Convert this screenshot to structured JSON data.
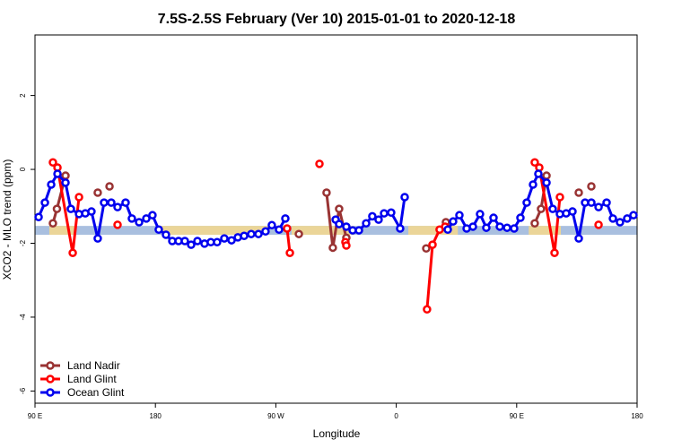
{
  "chart_data": {
    "type": "line",
    "title": "7.5S-2.5S February (Ver 10)   2015-01-01 to 2020-12-18",
    "x_label": "Longitude",
    "y_label": "XCO2 - MLO trend (ppm)",
    "xlim": [
      90,
      540
    ],
    "ylim": [
      -6.33,
      3.64
    ],
    "xticks": [
      {
        "value": 90,
        "label": "90 E"
      },
      {
        "value": 180,
        "label": "180"
      },
      {
        "value": 270,
        "label": "90 W"
      },
      {
        "value": 360,
        "label": "0"
      },
      {
        "value": 450,
        "label": "90 E"
      },
      {
        "value": 540,
        "label": "180"
      }
    ],
    "yticks": [
      -6,
      -4,
      -2,
      0,
      2
    ],
    "legend": "bottom-left",
    "band": [
      -1.53,
      -1.77
    ],
    "band_color": "#a9bfdf",
    "highlight_spans": [
      [
        100.7,
        120.8
      ],
      [
        184.6,
        265.0
      ],
      [
        281.8,
        328.7
      ],
      [
        369.0,
        406.0
      ],
      [
        459.0,
        483.0
      ]
    ],
    "highlight_color": "#f7d88c",
    "series": [
      {
        "name": "Land Nadir",
        "color": "#993333",
        "x": [
          103.4,
          106.4,
          112.8,
          null,
          136.9,
          null,
          145.7,
          null,
          287.2,
          null,
          307.9,
          312.6,
          317.3,
          322.7,
          null,
          382.4,
          null,
          397.1,
          null,
          463.5,
          468.2,
          472.3,
          null,
          496.4,
          null,
          505.8
        ],
        "values": [
          -1.46,
          -1.07,
          -0.17,
          null,
          -0.63,
          null,
          -0.46,
          null,
          -1.75,
          null,
          -0.63,
          -2.12,
          -1.07,
          -1.85,
          null,
          -2.14,
          null,
          -1.43,
          null,
          -1.46,
          -1.07,
          -0.17,
          null,
          -0.63,
          null,
          -0.46
        ]
      },
      {
        "name": "Land Glint",
        "color": "#ff0000",
        "x": [
          103.4,
          106.8,
          118.2,
          122.9,
          null,
          151.7,
          null,
          278.4,
          280.5,
          null,
          302.6,
          null,
          322.0,
          322.7,
          null,
          383.0,
          387.1,
          392.4,
          396.5,
          null,
          463.5,
          466.9,
          478.3,
          482.3,
          null,
          511.2
        ],
        "values": [
          0.19,
          0.05,
          -2.26,
          -0.75,
          null,
          -1.5,
          null,
          -1.6,
          -2.26,
          null,
          0.15,
          null,
          -1.97,
          -2.06,
          null,
          -3.79,
          -2.04,
          -1.63,
          -1.55,
          null,
          0.19,
          0.05,
          -2.26,
          -0.75,
          null,
          -1.5
        ]
      },
      {
        "name": "Ocean Glint",
        "color": "#0000ee",
        "x": [
          92.7,
          97.4,
          102.1,
          106.8,
          112.8,
          116.8,
          122.9,
          127.6,
          132.2,
          136.9,
          141.6,
          147.0,
          151.7,
          157.7,
          162.4,
          167.8,
          173.2,
          177.8,
          182.5,
          187.9,
          192.6,
          197.3,
          202.0,
          206.7,
          211.4,
          216.7,
          221.4,
          226.1,
          231.5,
          236.9,
          241.6,
          246.3,
          251.6,
          257.0,
          262.3,
          267.0,
          272.4,
          277.1,
          null,
          314.7,
          317.3,
          322.7,
          327.4,
          332.1,
          337.5,
          342.1,
          346.8,
          350.9,
          356.2,
          362.9,
          366.3,
          null,
          398.5,
          402.5,
          407.2,
          412.6,
          417.3,
          422.6,
          427.3,
          432.7,
          437.4,
          442.8,
          448.1,
          452.8,
          457.5,
          462.2,
          466.2,
          472.3,
          476.9,
          482.3,
          487.0,
          491.7,
          496.4,
          501.1,
          505.8,
          511.2,
          517.2,
          521.9,
          527.2,
          532.6,
          537.3
        ],
        "values": [
          -1.29,
          -0.9,
          -0.41,
          -0.12,
          -0.36,
          -1.07,
          -1.21,
          -1.19,
          -1.14,
          -1.87,
          -0.9,
          -0.9,
          -1.02,
          -0.9,
          -1.33,
          -1.43,
          -1.33,
          -1.24,
          -1.63,
          -1.77,
          -1.94,
          -1.94,
          -1.94,
          -2.04,
          -1.94,
          -2.01,
          -1.97,
          -1.97,
          -1.87,
          -1.92,
          -1.84,
          -1.8,
          -1.75,
          -1.75,
          -1.68,
          -1.51,
          -1.63,
          -1.33,
          null,
          -1.36,
          -1.48,
          -1.55,
          -1.65,
          -1.65,
          -1.46,
          -1.27,
          -1.36,
          -1.19,
          -1.17,
          -1.6,
          -0.75,
          null,
          -1.63,
          -1.41,
          -1.24,
          -1.6,
          -1.55,
          -1.21,
          -1.58,
          -1.31,
          -1.55,
          -1.58,
          -1.6,
          -1.31,
          -0.9,
          -0.41,
          -0.12,
          -0.36,
          -1.07,
          -1.21,
          -1.19,
          -1.14,
          -1.87,
          -0.9,
          -0.9,
          -1.02,
          -0.9,
          -1.33,
          -1.43,
          -1.33,
          -1.24
        ]
      }
    ]
  }
}
